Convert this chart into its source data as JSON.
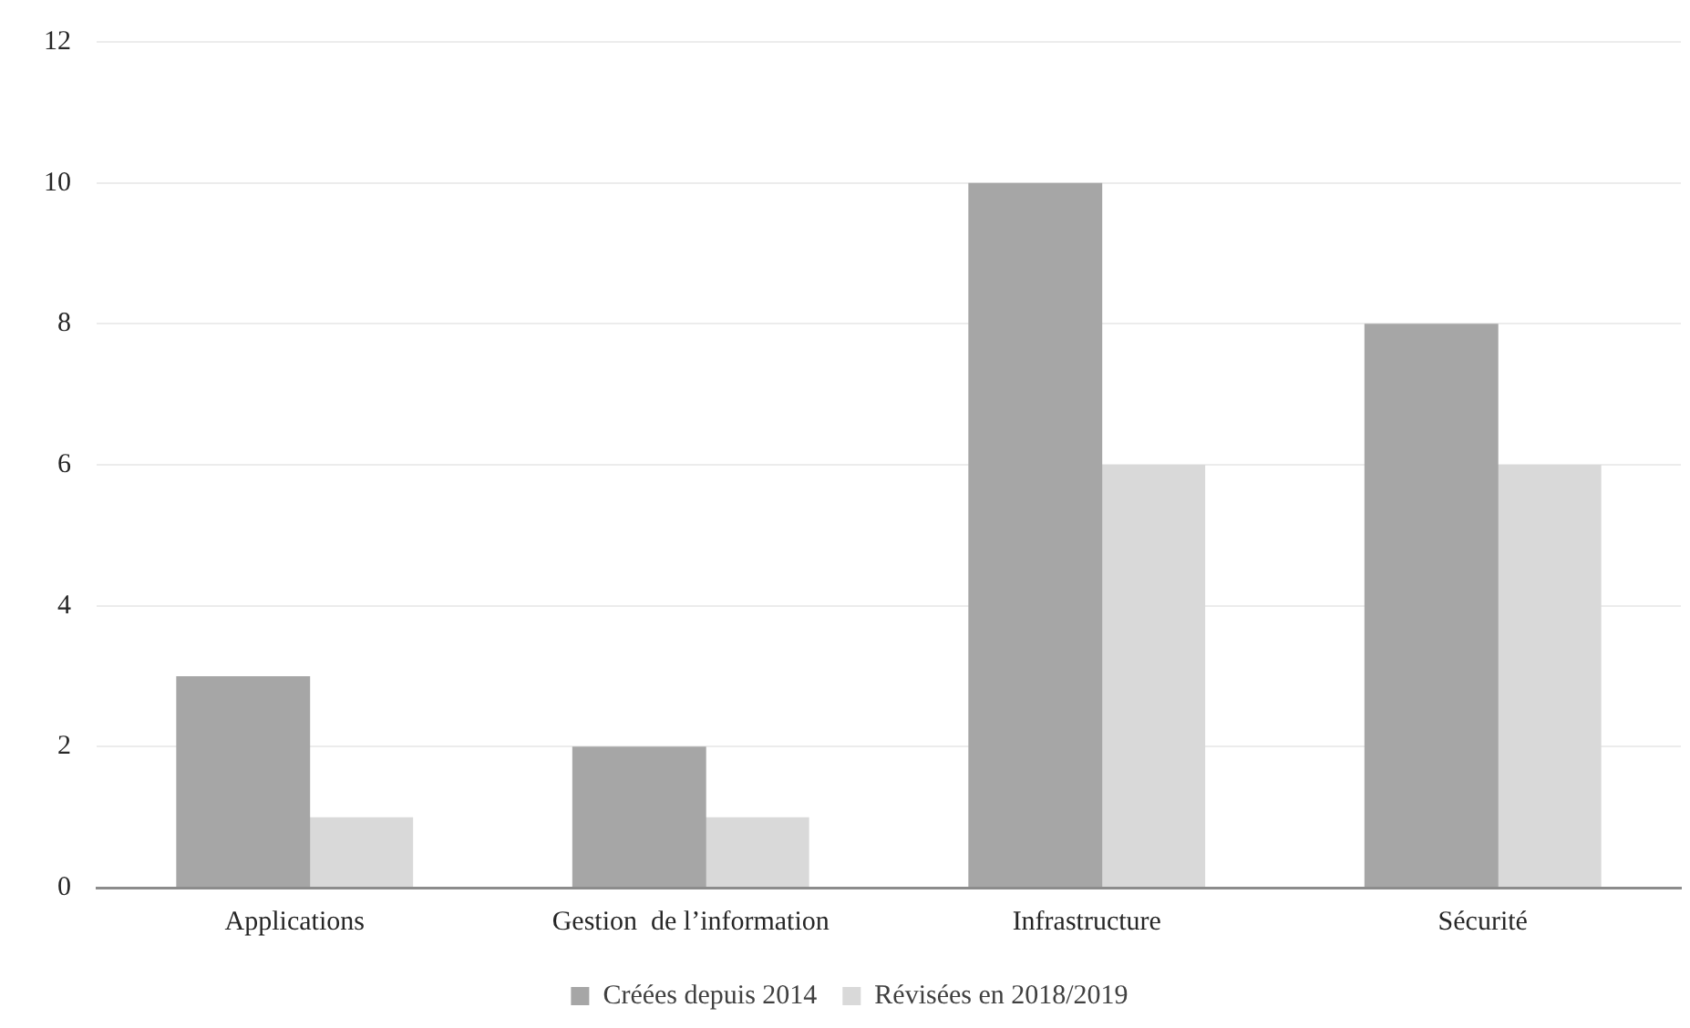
{
  "chart_data": {
    "type": "bar",
    "categories": [
      "Applications",
      "Gestion  de l’information",
      "Infrastructure",
      "Sécurité"
    ],
    "series": [
      {
        "name": "Créées depuis 2014",
        "color": "#a6a6a6",
        "values": [
          3,
          2,
          10,
          8
        ]
      },
      {
        "name": "Révisées en 2018/2019",
        "color": "#d9d9d9",
        "values": [
          1,
          1,
          6,
          6
        ]
      }
    ],
    "ylim": [
      0,
      12
    ],
    "yticks": [
      0,
      2,
      4,
      6,
      8,
      10,
      12
    ],
    "grid": "y",
    "legend": "bottom"
  }
}
